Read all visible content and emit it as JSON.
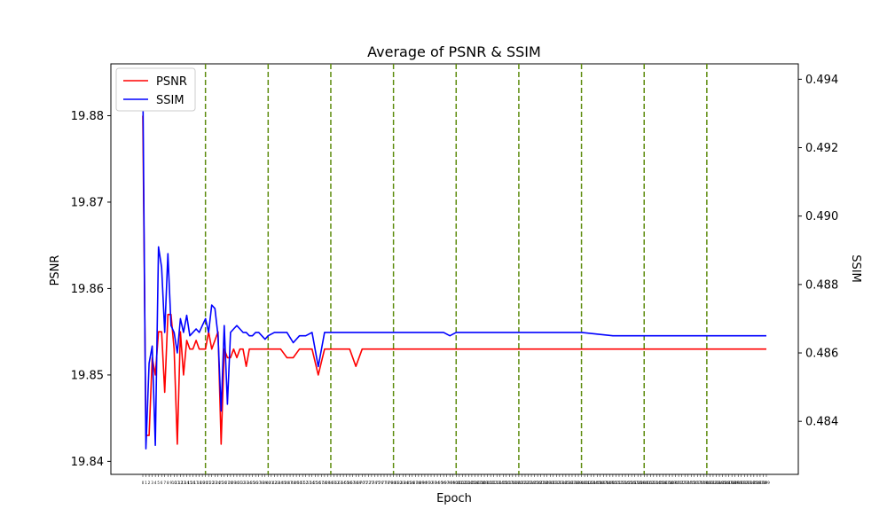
{
  "chart_data": {
    "type": "line",
    "title": "Average of PSNR & SSIM",
    "xlabel": "Epoch",
    "ylabel_left": "PSNR",
    "ylabel_right": "SSIM",
    "x_range": [
      0,
      199
    ],
    "ylim_left": [
      19.8385,
      19.886
    ],
    "ylim_right": [
      0.48245,
      0.49445
    ],
    "left_ticks": [
      19.84,
      19.85,
      19.86,
      19.87,
      19.88
    ],
    "right_ticks": [
      0.484,
      0.486,
      0.488,
      0.49,
      0.492,
      0.494
    ],
    "left_tick_labels": [
      "19.84",
      "19.85",
      "19.86",
      "19.87",
      "19.88"
    ],
    "right_tick_labels": [
      "0.484",
      "0.486",
      "0.488",
      "0.490",
      "0.492",
      "0.494"
    ],
    "vlines": [
      20,
      40,
      60,
      80,
      100,
      120,
      140,
      160,
      180
    ],
    "vline_color": "#5e8c0e",
    "grid": false,
    "legend": {
      "placement": "top-left",
      "entries": [
        {
          "name": "PSNR",
          "color": "#ff0000"
        },
        {
          "name": "SSIM",
          "color": "#0000ff"
        }
      ]
    },
    "series": [
      {
        "name": "PSNR",
        "axis": "left",
        "color": "#ff0000",
        "x": [
          0,
          1,
          2,
          3,
          4,
          5,
          6,
          7,
          8,
          9,
          10,
          11,
          12,
          13,
          14,
          15,
          16,
          17,
          18,
          19,
          20,
          21,
          22,
          23,
          24,
          25,
          26,
          27,
          28,
          29,
          30,
          31,
          32,
          33,
          34,
          35,
          36,
          37,
          38,
          39,
          40,
          42,
          44,
          46,
          48,
          50,
          52,
          54,
          56,
          58,
          60,
          62,
          64,
          66,
          68,
          70,
          72,
          74,
          76,
          78,
          80,
          82,
          84,
          86,
          88,
          90,
          92,
          94,
          96,
          98,
          100,
          105,
          110,
          115,
          120,
          125,
          130,
          135,
          140,
          150,
          160,
          170,
          180,
          190,
          199
        ],
        "values": [
          19.88,
          19.843,
          19.843,
          19.852,
          19.85,
          19.855,
          19.855,
          19.848,
          19.857,
          19.857,
          19.853,
          19.842,
          19.855,
          19.85,
          19.854,
          19.853,
          19.853,
          19.854,
          19.853,
          19.853,
          19.853,
          19.855,
          19.853,
          19.854,
          19.855,
          19.842,
          19.853,
          19.852,
          19.852,
          19.853,
          19.852,
          19.853,
          19.853,
          19.851,
          19.853,
          19.853,
          19.853,
          19.853,
          19.853,
          19.853,
          19.853,
          19.853,
          19.853,
          19.852,
          19.852,
          19.853,
          19.853,
          19.853,
          19.85,
          19.853,
          19.853,
          19.853,
          19.853,
          19.853,
          19.851,
          19.853,
          19.853,
          19.853,
          19.853,
          19.853,
          19.853,
          19.853,
          19.853,
          19.853,
          19.853,
          19.853,
          19.853,
          19.853,
          19.853,
          19.853,
          19.853,
          19.853,
          19.853,
          19.853,
          19.853,
          19.853,
          19.853,
          19.853,
          19.853,
          19.853,
          19.853,
          19.853,
          19.853,
          19.853,
          19.853
        ]
      },
      {
        "name": "SSIM",
        "axis": "right",
        "color": "#0000ff",
        "x": [
          0,
          1,
          2,
          3,
          4,
          5,
          6,
          7,
          8,
          9,
          10,
          11,
          12,
          13,
          14,
          15,
          16,
          17,
          18,
          19,
          20,
          21,
          22,
          23,
          24,
          25,
          26,
          27,
          28,
          29,
          30,
          31,
          32,
          33,
          34,
          35,
          36,
          37,
          38,
          39,
          40,
          42,
          44,
          46,
          48,
          50,
          52,
          54,
          56,
          58,
          60,
          62,
          64,
          66,
          68,
          70,
          72,
          74,
          76,
          78,
          80,
          82,
          84,
          86,
          88,
          90,
          92,
          94,
          96,
          98,
          100,
          105,
          110,
          115,
          120,
          125,
          130,
          135,
          140,
          150,
          160,
          170,
          180,
          190,
          199
        ],
        "values": [
          0.494,
          0.4832,
          0.4857,
          0.4862,
          0.4833,
          0.4891,
          0.4885,
          0.4866,
          0.4889,
          0.4868,
          0.4866,
          0.486,
          0.487,
          0.4866,
          0.4871,
          0.4865,
          0.4866,
          0.4867,
          0.4866,
          0.4868,
          0.487,
          0.4866,
          0.4874,
          0.4873,
          0.4865,
          0.4843,
          0.4868,
          0.4845,
          0.4866,
          0.4867,
          0.4868,
          0.4867,
          0.4866,
          0.4866,
          0.4865,
          0.4865,
          0.4866,
          0.4866,
          0.4865,
          0.4864,
          0.4865,
          0.4866,
          0.4866,
          0.4866,
          0.4863,
          0.4865,
          0.4865,
          0.4866,
          0.4856,
          0.4866,
          0.4866,
          0.4866,
          0.4866,
          0.4866,
          0.4866,
          0.4866,
          0.4866,
          0.4866,
          0.4866,
          0.4866,
          0.4866,
          0.4866,
          0.4866,
          0.4866,
          0.4866,
          0.4866,
          0.4866,
          0.4866,
          0.4866,
          0.4865,
          0.4866,
          0.4866,
          0.4866,
          0.4866,
          0.4866,
          0.4866,
          0.4866,
          0.4866,
          0.4866,
          0.4865,
          0.4865,
          0.4865,
          0.4865,
          0.4865,
          0.4865
        ]
      }
    ]
  }
}
